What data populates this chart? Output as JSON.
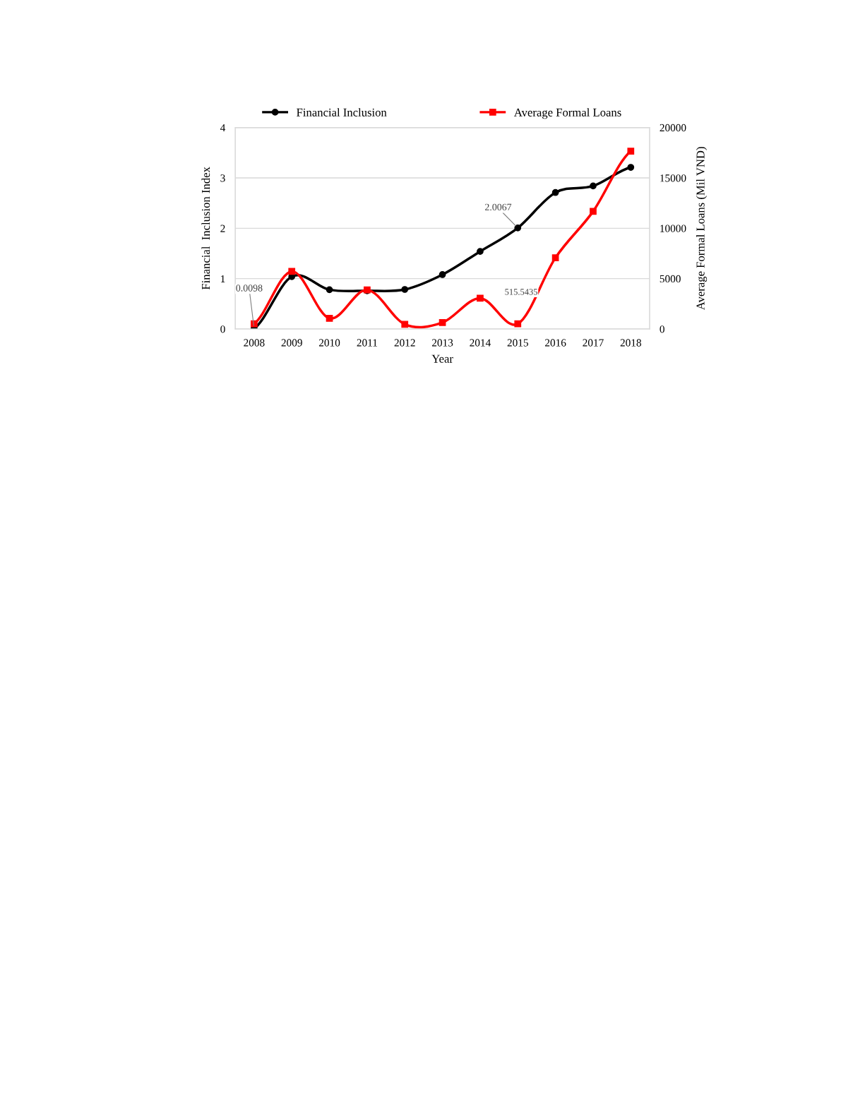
{
  "chart_data": {
    "type": "line",
    "xlabel": "Year",
    "ylabel": "Financial  Inclusion Index",
    "y2label": "Average Formal Loans (Mil VND)",
    "categories": [
      "2008",
      "2009",
      "2010",
      "2011",
      "2012",
      "2013",
      "2014",
      "2015",
      "2016",
      "2017",
      "2018"
    ],
    "series": [
      {
        "name": "Financial Inclusion",
        "color": "#000000",
        "marker": "circle",
        "values": [
          0.0098,
          1.04,
          0.78,
          0.76,
          0.785,
          1.08,
          1.54,
          2.0067,
          2.71,
          2.84,
          3.21
        ]
      },
      {
        "name": "Average Formal Loans",
        "color": "#ff0000",
        "marker": "square",
        "axis": "y2",
        "values": [
          520,
          5720,
          1060,
          3880,
          470,
          640,
          3050,
          515.5435,
          7070,
          11680,
          17660
        ]
      }
    ],
    "ylim": [
      0,
      4
    ],
    "yticks": [
      0,
      1,
      2,
      3,
      4
    ],
    "y2lim": [
      0,
      20000
    ],
    "y2ticks": [
      0,
      5000,
      10000,
      15000,
      20000
    ],
    "grid": "y",
    "legend": "top",
    "line_style": "solid",
    "annotations": [
      {
        "text": "0.0098",
        "x": "2008",
        "y": 0.0098
      },
      {
        "text": "2.0067",
        "x": "2015",
        "y": 2.0067
      },
      "515.5435"
    ]
  }
}
